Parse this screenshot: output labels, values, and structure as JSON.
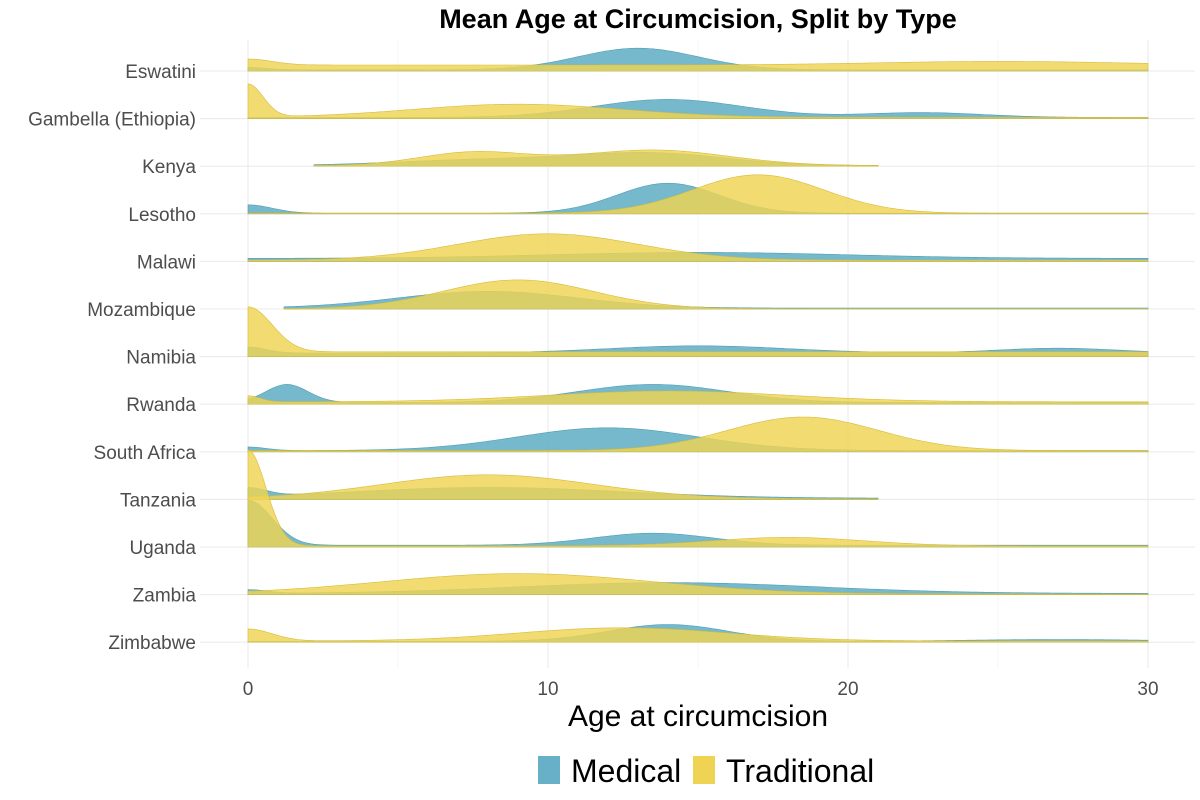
{
  "chart_data": {
    "type": "ridgeline",
    "title": "Mean Age at Circumcision, Split by Type",
    "xlabel": "Age at circumcision",
    "ylabel": "",
    "xlim": [
      0,
      30
    ],
    "xticks": [
      0,
      10,
      20,
      30
    ],
    "grid": true,
    "legend_position": "bottom",
    "series_colors": {
      "Medical": "#67B0C7",
      "Traditional": "#EFD453"
    },
    "legend": [
      {
        "name": "Medical",
        "color": "#67B0C7"
      },
      {
        "name": "Traditional",
        "color": "#EFD453"
      }
    ],
    "countries": [
      {
        "name": "Zimbabwe",
        "medical": {
          "range": [
            0,
            30
          ],
          "comps": [
            [
              14,
              2.0,
              0.28
            ],
            [
              27,
              3.0,
              0.03
            ]
          ],
          "base": 0.015
        },
        "traditional": {
          "range": [
            0,
            30
          ],
          "comps": [
            [
              0,
              0.8,
              0.2
            ],
            [
              12.5,
              3.5,
              0.22
            ]
          ],
          "base": 0.02
        }
      },
      {
        "name": "Zambia",
        "medical": {
          "range": [
            0,
            30
          ],
          "comps": [
            [
              14,
              5.0,
              0.18
            ],
            [
              0,
              0.6,
              0.06
            ]
          ],
          "base": 0.02
        },
        "traditional": {
          "range": [
            0,
            30
          ],
          "comps": [
            [
              9,
              4.5,
              0.34
            ]
          ],
          "base": 0.01
        }
      },
      {
        "name": "Uganda",
        "medical": {
          "range": [
            0,
            30
          ],
          "comps": [
            [
              0,
              0.8,
              0.75
            ],
            [
              13.5,
              2.0,
              0.2
            ]
          ],
          "base": 0.03
        },
        "traditional": {
          "range": [
            0,
            30
          ],
          "comps": [
            [
              0,
              0.6,
              1.6
            ],
            [
              18,
              2.5,
              0.14
            ]
          ],
          "base": 0.02
        }
      },
      {
        "name": "Tanzania",
        "medical": {
          "range": [
            0,
            21
          ],
          "comps": [
            [
              8,
              4.5,
              0.18
            ],
            [
              0,
              0.6,
              0.14
            ]
          ],
          "base": 0.02
        },
        "traditional": {
          "range": [
            0,
            21
          ],
          "comps": [
            [
              8,
              3.5,
              0.4
            ]
          ],
          "base": 0.01
        }
      },
      {
        "name": "South Africa",
        "medical": {
          "range": [
            0,
            30
          ],
          "comps": [
            [
              12,
              3.0,
              0.38
            ],
            [
              0,
              0.6,
              0.06
            ]
          ],
          "base": 0.02
        },
        "traditional": {
          "range": [
            0,
            30
          ],
          "comps": [
            [
              18.5,
              2.5,
              0.56
            ]
          ],
          "base": 0.02
        }
      },
      {
        "name": "Rwanda",
        "medical": {
          "range": [
            0,
            30
          ],
          "comps": [
            [
              1.3,
              0.7,
              0.3
            ],
            [
              13.5,
              2.5,
              0.3
            ]
          ],
          "base": 0.03
        },
        "traditional": {
          "range": [
            0,
            30
          ],
          "comps": [
            [
              14,
              4.0,
              0.18
            ],
            [
              0,
              0.4,
              0.1
            ]
          ],
          "base": 0.04
        }
      },
      {
        "name": "Namibia",
        "medical": {
          "range": [
            0,
            30
          ],
          "comps": [
            [
              15,
              3.0,
              0.12
            ],
            [
              27,
              2.0,
              0.08
            ],
            [
              0,
              0.6,
              0.1
            ]
          ],
          "base": 0.06
        },
        "traditional": {
          "range": [
            0,
            30
          ],
          "comps": [
            [
              0,
              0.8,
              0.75
            ]
          ],
          "base": 0.08
        }
      },
      {
        "name": "Mozambique",
        "medical": {
          "range": [
            1.2,
            30
          ],
          "comps": [
            [
              8,
              3.0,
              0.28
            ]
          ],
          "base": 0.015
        },
        "traditional": {
          "range": [
            1.2,
            30
          ],
          "comps": [
            [
              9,
              2.5,
              0.48
            ]
          ],
          "base": 0.005
        }
      },
      {
        "name": "Malawi",
        "medical": {
          "range": [
            0,
            30
          ],
          "comps": [
            [
              15,
              5.0,
              0.1
            ]
          ],
          "base": 0.05
        },
        "traditional": {
          "range": [
            0,
            30
          ],
          "comps": [
            [
              10,
              3.0,
              0.44
            ]
          ],
          "base": 0.02
        }
      },
      {
        "name": "Lesotho",
        "medical": {
          "range": [
            0,
            30
          ],
          "comps": [
            [
              14,
              1.7,
              0.5
            ],
            [
              0,
              0.8,
              0.14
            ]
          ],
          "base": 0.01
        },
        "traditional": {
          "range": [
            0,
            30
          ],
          "comps": [
            [
              17,
              2.2,
              0.64
            ]
          ],
          "base": 0.01
        }
      },
      {
        "name": "Kenya",
        "medical": {
          "range": [
            2.2,
            21
          ],
          "comps": [
            [
              13.5,
              2.5,
              0.2
            ],
            [
              8,
              3.0,
              0.1
            ]
          ],
          "base": 0.01
        },
        "traditional": {
          "range": [
            2.2,
            21
          ],
          "comps": [
            [
              7.5,
              1.8,
              0.22
            ],
            [
              13.5,
              2.5,
              0.26
            ]
          ],
          "base": 0.01
        }
      },
      {
        "name": "Gambella (Ethiopia)",
        "medical": {
          "range": [
            0,
            30
          ],
          "comps": [
            [
              14,
              2.5,
              0.3
            ],
            [
              22.5,
              2.0,
              0.08
            ]
          ],
          "base": 0.02
        },
        "traditional": {
          "range": [
            0,
            30
          ],
          "comps": [
            [
              0,
              0.5,
              0.55
            ],
            [
              9,
              3.5,
              0.22
            ]
          ],
          "base": 0.02
        }
      },
      {
        "name": "Eswatini",
        "medical": {
          "range": [
            0,
            30
          ],
          "comps": [
            [
              13,
              2.0,
              0.36
            ],
            [
              0,
              0.6,
              0.04
            ]
          ],
          "base": 0.02
        },
        "traditional": {
          "range": [
            0,
            30
          ],
          "comps": [
            [
              0,
              0.8,
              0.1
            ],
            [
              25,
              4.0,
              0.06
            ]
          ],
          "base": 0.1
        }
      }
    ]
  }
}
